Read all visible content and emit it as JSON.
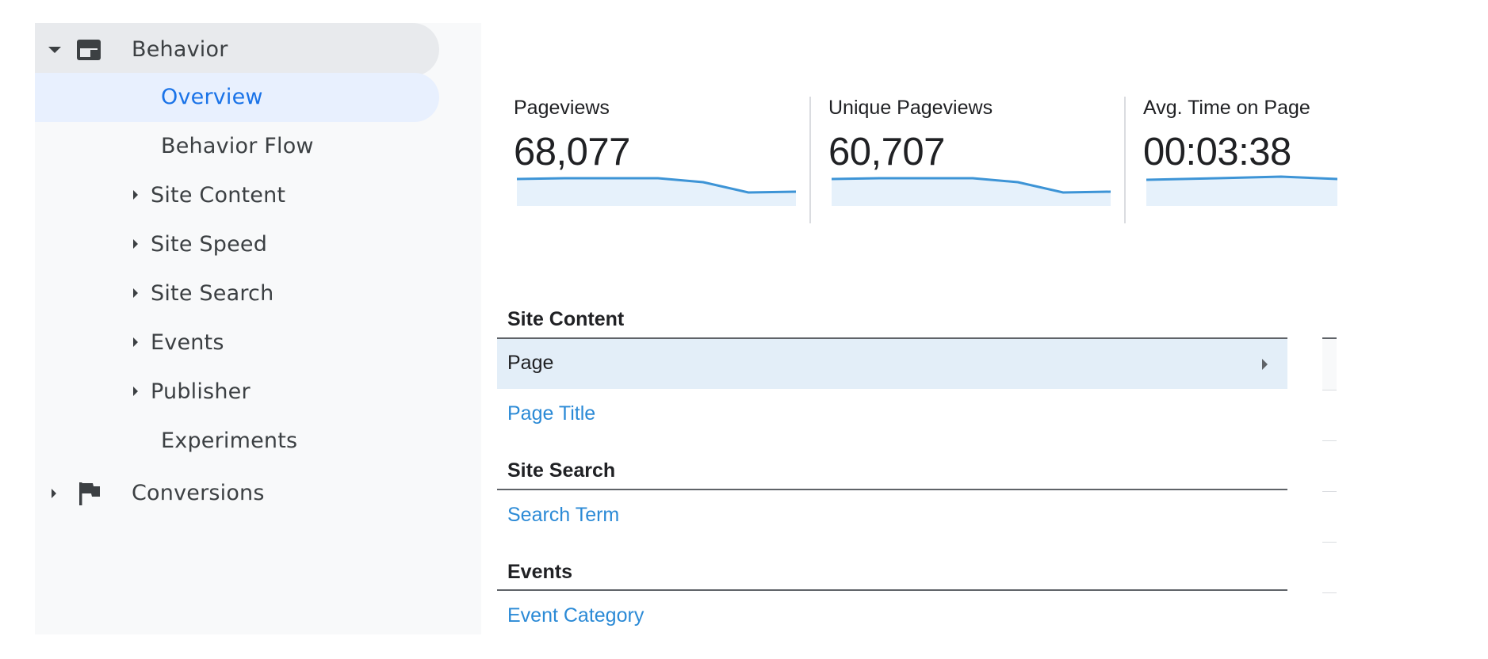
{
  "sidebar": {
    "behavior": {
      "label": "Behavior",
      "icon": "behavior-icon",
      "expanded": true
    },
    "items": [
      {
        "label": "Overview",
        "active": true,
        "type": "leaf"
      },
      {
        "label": "Behavior Flow",
        "active": false,
        "type": "leaf"
      },
      {
        "label": "Site Content",
        "active": false,
        "type": "group"
      },
      {
        "label": "Site Speed",
        "active": false,
        "type": "group"
      },
      {
        "label": "Site Search",
        "active": false,
        "type": "group"
      },
      {
        "label": "Events",
        "active": false,
        "type": "group"
      },
      {
        "label": "Publisher",
        "active": false,
        "type": "group"
      },
      {
        "label": "Experiments",
        "active": false,
        "type": "leaf"
      }
    ],
    "conversions": {
      "label": "Conversions",
      "icon": "flag-icon",
      "expanded": false
    }
  },
  "metrics": [
    {
      "label": "Pageviews",
      "value": "68,077"
    },
    {
      "label": "Unique Pageviews",
      "value": "60,707"
    },
    {
      "label": "Avg. Time on Page",
      "value": "00:03:38"
    }
  ],
  "reports": {
    "site_content": {
      "header": "Site Content",
      "items": [
        "Page",
        "Page Title"
      ],
      "selected": "Page"
    },
    "site_search": {
      "header": "Site Search",
      "items": [
        "Search Term"
      ]
    },
    "events": {
      "header": "Events",
      "items": [
        "Event Category"
      ]
    }
  },
  "colors": {
    "accent": "#1a73e8",
    "link": "#2b8ad6",
    "sparkline": "#3d94d6",
    "sparkline_fill": "#e6f1fb",
    "selected_row": "#e3eef8"
  }
}
